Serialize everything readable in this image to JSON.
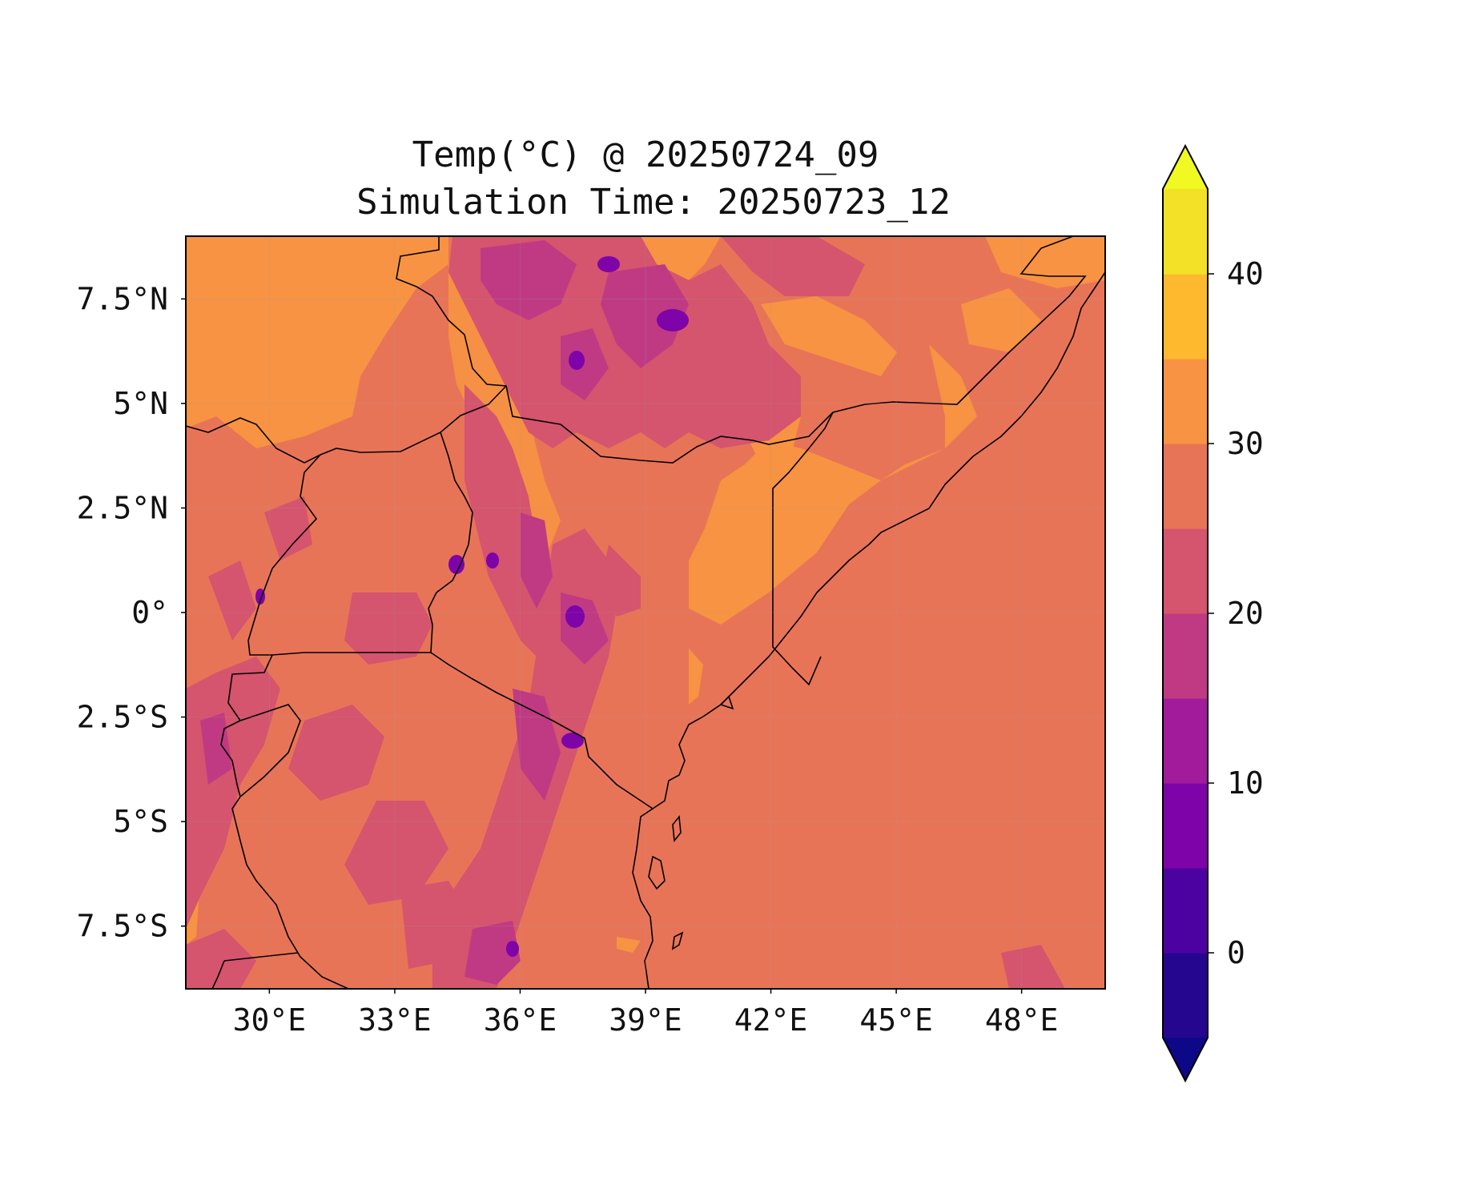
{
  "title": {
    "line1": "Temp(°C) @ 20250724_09",
    "line2": "Simulation Time: 20250723_12"
  },
  "map": {
    "extent": {
      "lon": [
        28.0,
        50.0
      ],
      "lat": [
        -9.0,
        9.0
      ]
    },
    "x_ticks": [
      {
        "lon": 30,
        "label": "30°E"
      },
      {
        "lon": 33,
        "label": "33°E"
      },
      {
        "lon": 36,
        "label": "36°E"
      },
      {
        "lon": 39,
        "label": "39°E"
      },
      {
        "lon": 42,
        "label": "42°E"
      },
      {
        "lon": 45,
        "label": "45°E"
      },
      {
        "lon": 48,
        "label": "48°E"
      }
    ],
    "y_ticks": [
      {
        "lat": 7.5,
        "label": "7.5°N"
      },
      {
        "lat": 5,
        "label": "5°N"
      },
      {
        "lat": 2.5,
        "label": "2.5°N"
      },
      {
        "lat": 0,
        "label": "0°"
      },
      {
        "lat": -2.5,
        "label": "2.5°S"
      },
      {
        "lat": -5,
        "label": "5°S"
      },
      {
        "lat": -7.5,
        "label": "7.5°S"
      }
    ],
    "background_color": "#e87458"
  },
  "colorbar": {
    "levels": [
      -5,
      0,
      5,
      10,
      15,
      20,
      25,
      30,
      35,
      40,
      45
    ],
    "colors": [
      "#24068f",
      "#4c02a1",
      "#7e03a8",
      "#a11b9b",
      "#c03a83",
      "#d5546e",
      "#e87458",
      "#f79342",
      "#feb92e",
      "#f3e128"
    ],
    "under_color": "#0d0887",
    "over_color": "#f0f921",
    "tick_labels": [
      {
        "value": 0,
        "label": "0"
      },
      {
        "value": 10,
        "label": "10"
      },
      {
        "value": 20,
        "label": "20"
      },
      {
        "value": 30,
        "label": "30"
      },
      {
        "value": 40,
        "label": "40"
      }
    ]
  }
}
